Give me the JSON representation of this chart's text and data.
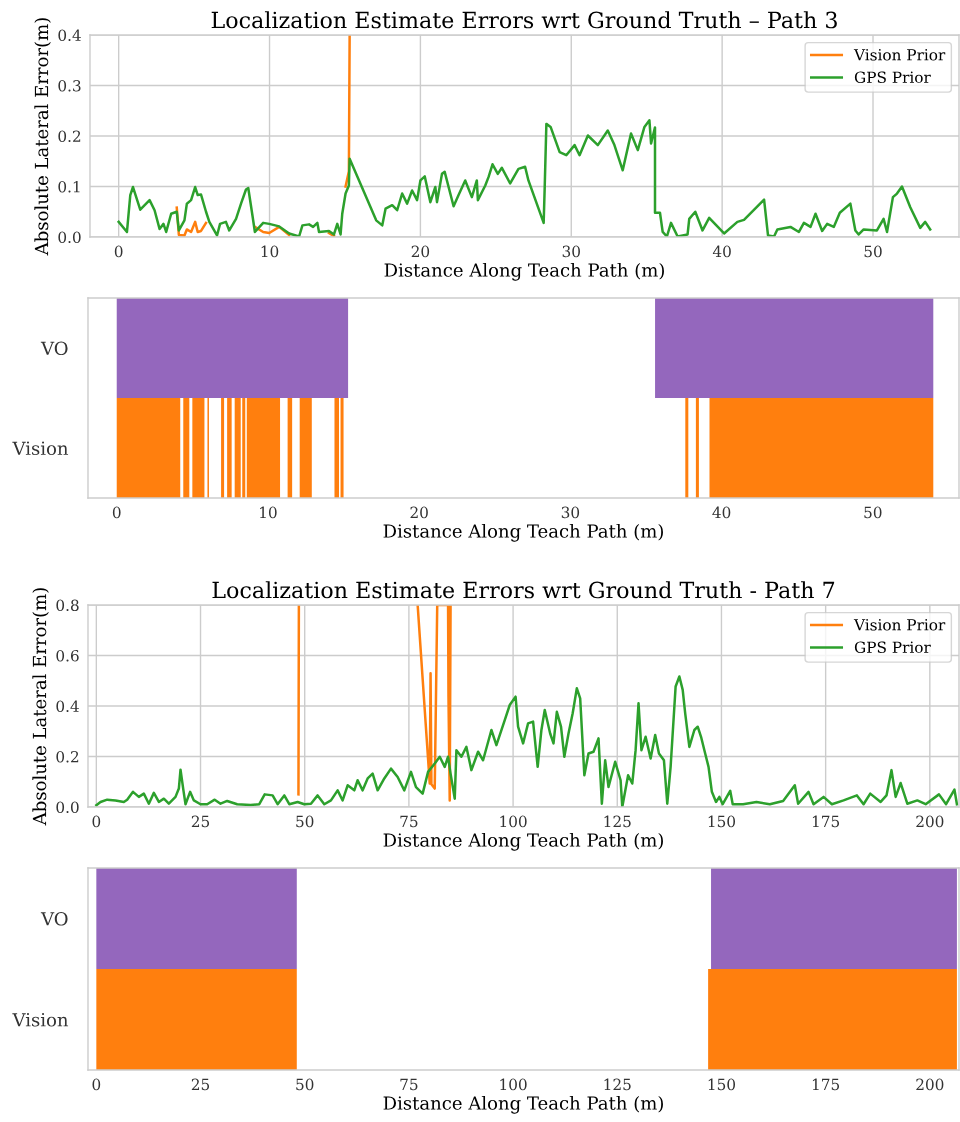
{
  "chart_data": [
    {
      "type": "line",
      "title": "Localization Estimate Errors wrt Ground Truth – Path 3",
      "xlabel": "Distance Along Teach Path (m)",
      "ylabel": "Absolute Lateral Error(m)",
      "xlim": [
        -1.9,
        55.7
      ],
      "xticks": [
        0,
        10,
        20,
        30,
        40,
        50
      ],
      "ylim": [
        0,
        0.4
      ],
      "yticks": [
        {
          "value": 0,
          "label": "0.0"
        },
        0.1,
        0.2,
        0.3,
        0.4
      ],
      "grid": true,
      "legend": "top right",
      "series": [
        {
          "name": "Vision Prior",
          "color": "#ff7f0e",
          "x": [
            3.85,
            3.99,
            4.36,
            4.52,
            4.8,
            5.07,
            5.24,
            5.46,
            5.79,
            null,
            9.03,
            9.58,
            9.98,
            10.64,
            11.3,
            null,
            13.94,
            14.27,
            null,
            15.04,
            15.26,
            15.31
          ],
          "values": [
            0.058,
            0.004,
            0.003,
            0.015,
            0.01,
            0.03,
            0.01,
            0.012,
            0.028,
            null,
            0.02,
            0.01,
            0.008,
            0.02,
            0.004,
            null,
            0.008,
            0.002,
            null,
            0.1,
            0.13,
            0.4
          ]
        },
        {
          "name": "GPS Prior",
          "color": "#2ca02c",
          "x": [
            0,
            0.55,
            0.77,
            0.95,
            1.43,
            2.05,
            2.38,
            2.71,
            2.97,
            3.15,
            3.48,
            3.85,
            3.99,
            4.36,
            4.52,
            4.8,
            5.07,
            5.24,
            5.46,
            5.79,
            6.01,
            6.52,
            6.72,
            7.11,
            7.33,
            7.78,
            8.11,
            8.44,
            8.59,
            8.88,
            9.03,
            9.58,
            9.98,
            10.64,
            11.3,
            11.96,
            12.18,
            12.62,
            12.89,
            13.17,
            13.28,
            13.94,
            14.27,
            14.49,
            14.71,
            14.82,
            15.04,
            15.26,
            15.31,
            17.07,
            17.47,
            17.69,
            18.13,
            18.46,
            18.79,
            19.12,
            19.45,
            19.78,
            20.0,
            20.29,
            20.66,
            20.99,
            21.1,
            21.43,
            21.61,
            22.2,
            22.53,
            22.97,
            23.41,
            23.74,
            23.81,
            24.3,
            24.52,
            24.78,
            25.13,
            25.4,
            25.95,
            26.5,
            26.94,
            27.16,
            28.17,
            28.24,
            28.35,
            28.63,
            29.23,
            29.67,
            30.22,
            30.55,
            31.1,
            31.76,
            32.42,
            32.86,
            33.41,
            33.96,
            34.41,
            34.85,
            35.18,
            35.29,
            35.55,
            35.55,
            35.88,
            36.06,
            36.34,
            36.61,
            37.05,
            37.71,
            37.82,
            38.22,
            38.7,
            39.14,
            40.13,
            41.01,
            41.45,
            42.78,
            43.04,
            43.44,
            43.66,
            44.53,
            45.09,
            45.42,
            45.86,
            46.19,
            46.63,
            46.96,
            47.4,
            47.8,
            48.5,
            48.83,
            49.05,
            49.38,
            50.26,
            50.7,
            50.93,
            51.32,
            51.59,
            51.92,
            52.47,
            53.13,
            53.46,
            53.79
          ],
          "values": [
            0.03,
            0.01,
            0.083,
            0.099,
            0.054,
            0.073,
            0.053,
            0.016,
            0.026,
            0.01,
            0.046,
            0.05,
            0.013,
            0.033,
            0.066,
            0.073,
            0.099,
            0.083,
            0.084,
            0.05,
            0.03,
            0.003,
            0.026,
            0.03,
            0.013,
            0.036,
            0.066,
            0.094,
            0.097,
            0.04,
            0.01,
            0.028,
            0.026,
            0.021,
            0.007,
            0.001,
            0.023,
            0.025,
            0.02,
            0.028,
            0.01,
            0.012,
            0.005,
            0.026,
            0.005,
            0.046,
            0.086,
            0.102,
            0.155,
            0.033,
            0.023,
            0.056,
            0.063,
            0.053,
            0.086,
            0.066,
            0.092,
            0.073,
            0.112,
            0.12,
            0.069,
            0.099,
            0.069,
            0.125,
            0.129,
            0.061,
            0.083,
            0.112,
            0.079,
            0.112,
            0.073,
            0.102,
            0.119,
            0.144,
            0.125,
            0.137,
            0.106,
            0.135,
            0.139,
            0.112,
            0.028,
            0.099,
            0.224,
            0.218,
            0.168,
            0.162,
            0.182,
            0.162,
            0.201,
            0.182,
            0.211,
            0.182,
            0.132,
            0.205,
            0.172,
            0.218,
            0.231,
            0.185,
            0.217,
            0.048,
            0.048,
            0.01,
            0.001,
            0.028,
            0.001,
            0.005,
            0.036,
            0.05,
            0.013,
            0.038,
            0.007,
            0.03,
            0.034,
            0.074,
            0.003,
            0.001,
            0.015,
            0.02,
            0.01,
            0.028,
            0.02,
            0.046,
            0.012,
            0.026,
            0.02,
            0.048,
            0.066,
            0.013,
            0.005,
            0.015,
            0.013,
            0.036,
            0.01,
            0.079,
            0.086,
            0.1,
            0.059,
            0.018,
            0.03,
            0.015
          ]
        }
      ]
    },
    {
      "type": "bar",
      "orientation": "horizontal",
      "categories": [
        "VO",
        "Vision"
      ],
      "xlabel": "Distance Along Teach Path (m)",
      "xlim": [
        -1.9,
        55.7
      ],
      "xticks": [
        0,
        10,
        20,
        30,
        40,
        50
      ],
      "grid": false,
      "series": [
        {
          "color": "#9467bd",
          "base": [
            0,
            null
          ],
          "values": [
            15.3,
            null
          ]
        },
        {
          "color": "#9467bd",
          "base": [
            35.6,
            null
          ],
          "values": [
            18.4,
            null
          ]
        },
        {
          "color": "#ff7f0e",
          "base": [
            null,
            0
          ],
          "values": [
            null,
            4.2
          ]
        },
        {
          "color": "#ff7f0e",
          "base": [
            null,
            4.4
          ],
          "values": [
            null,
            0.4
          ]
        },
        {
          "color": "#ff7f0e",
          "base": [
            null,
            5.0
          ],
          "values": [
            null,
            0.8
          ]
        },
        {
          "color": "#ff7f0e",
          "base": [
            null,
            6.0
          ],
          "values": [
            null,
            0.1
          ]
        },
        {
          "color": "#ff7f0e",
          "base": [
            null,
            6.9
          ],
          "values": [
            null,
            0.2
          ]
        },
        {
          "color": "#ff7f0e",
          "base": [
            null,
            7.3
          ],
          "values": [
            null,
            0.3
          ]
        },
        {
          "color": "#ff7f0e",
          "base": [
            null,
            7.8
          ],
          "values": [
            null,
            0.4
          ]
        },
        {
          "color": "#ff7f0e",
          "base": [
            null,
            8.3
          ],
          "values": [
            null,
            0.2
          ]
        },
        {
          "color": "#ff7f0e",
          "base": [
            null,
            8.6
          ],
          "values": [
            null,
            2.2
          ]
        },
        {
          "color": "#ff7f0e",
          "base": [
            null,
            11.3
          ],
          "values": [
            null,
            0.3
          ]
        },
        {
          "color": "#ff7f0e",
          "base": [
            null,
            12.1
          ],
          "values": [
            null,
            0.8
          ]
        },
        {
          "color": "#ff7f0e",
          "base": [
            null,
            14.4
          ],
          "values": [
            null,
            0.3
          ]
        },
        {
          "color": "#ff7f0e",
          "base": [
            null,
            14.8
          ],
          "values": [
            null,
            0.2
          ]
        },
        {
          "color": "#ff7f0e",
          "base": [
            null,
            37.6
          ],
          "values": [
            null,
            0.2
          ]
        },
        {
          "color": "#ff7f0e",
          "base": [
            null,
            38.3
          ],
          "values": [
            null,
            0.2
          ]
        },
        {
          "color": "#ff7f0e",
          "base": [
            null,
            39.2
          ],
          "values": [
            null,
            14.8
          ]
        }
      ]
    },
    {
      "type": "line",
      "title": "Localization Estimate Errors wrt Ground Truth - Path 7",
      "xlabel": "Distance Along Teach Path (m)",
      "ylabel": "Absolute Lateral Error(m)",
      "xlim": [
        -2,
        207
      ],
      "xticks": [
        0,
        25,
        50,
        75,
        100,
        125,
        150,
        175,
        200
      ],
      "ylim": [
        0,
        0.8
      ],
      "yticks": [
        {
          "value": 0,
          "label": "0.0"
        },
        0.2,
        0.4,
        0.6,
        0.8
      ],
      "grid": true,
      "legend": "top right",
      "series": [
        {
          "name": "Vision Prior",
          "color": "#ff7f0e",
          "x": [
            48.5,
            48.6,
            null,
            77.1,
            80.0,
            80.2,
            80.4,
            81.2,
            81.8,
            84.4,
            84.5,
            84.8,
            85.0
          ],
          "values": [
            0.05,
            0.8,
            null,
            0.8,
            0.093,
            0.53,
            0.09,
            0.073,
            0.8,
            0.8,
            0.437,
            0.026,
            0.8
          ]
        },
        {
          "name": "GPS Prior",
          "color": "#2ca02c",
          "x": [
            0,
            1.0,
            2.6,
            4.6,
            6.6,
            7.4,
            8.8,
            10.2,
            11.4,
            12.6,
            13.8,
            15.0,
            16.2,
            17.4,
            19.0,
            19.8,
            20.2,
            20.9,
            21.4,
            22.5,
            23.4,
            25.0,
            26.6,
            28.4,
            29.8,
            31.4,
            33.8,
            37.0,
            39.1,
            40.4,
            42.3,
            43.5,
            45.1,
            46.3,
            48.3,
            49.9,
            51.5,
            53.1,
            54.7,
            56.3,
            57.9,
            59.1,
            60.3,
            61.9,
            62.7,
            63.9,
            65.1,
            66.3,
            67.5,
            69.1,
            70.7,
            72.3,
            73.9,
            75.5,
            76.7,
            78.3,
            79.6,
            81.2,
            82.4,
            83.6,
            84.4,
            85.0,
            86.0,
            86.4,
            87.6,
            88.8,
            90.0,
            91.6,
            92.8,
            94.8,
            96.0,
            98.0,
            99.2,
            100.6,
            101.2,
            102.4,
            103.6,
            104.8,
            105.9,
            106.8,
            107.6,
            108.9,
            109.7,
            110.5,
            111.5,
            112.3,
            113.3,
            114.3,
            115.3,
            116.1,
            117.1,
            118.1,
            119.3,
            120.5,
            121.3,
            122.1,
            122.9,
            124.5,
            125.8,
            126.2,
            127.6,
            128.6,
            129.4,
            130.1,
            130.8,
            131.8,
            133.0,
            134.1,
            135.0,
            136.2,
            137.0,
            137.8,
            139.0,
            139.9,
            140.7,
            141.3,
            142.3,
            143.5,
            144.3,
            145.1,
            145.9,
            146.9,
            147.7,
            148.7,
            149.5,
            150.3,
            152.1,
            152.7,
            155.2,
            158.4,
            161.6,
            164.8,
            167.6,
            168.4,
            170.9,
            172.1,
            174.5,
            176.5,
            179.3,
            182.5,
            184.1,
            185.7,
            188.2,
            189.6,
            190.8,
            191.8,
            193.0,
            194.6,
            197.0,
            199.0,
            202.2,
            203.9,
            205.9,
            206.5
          ],
          "values": [
            0.007,
            0.02,
            0.029,
            0.026,
            0.02,
            0.029,
            0.06,
            0.04,
            0.053,
            0.013,
            0.056,
            0.02,
            0.033,
            0.013,
            0.04,
            0.073,
            0.148,
            0.066,
            0.011,
            0.06,
            0.026,
            0.011,
            0.011,
            0.029,
            0.013,
            0.024,
            0.011,
            0.008,
            0.011,
            0.05,
            0.046,
            0.011,
            0.046,
            0.011,
            0.02,
            0.011,
            0.013,
            0.046,
            0.011,
            0.026,
            0.066,
            0.026,
            0.086,
            0.066,
            0.106,
            0.066,
            0.113,
            0.132,
            0.066,
            0.113,
            0.152,
            0.119,
            0.066,
            0.139,
            0.079,
            0.053,
            0.139,
            0.172,
            0.199,
            0.159,
            0.199,
            0.132,
            0.033,
            0.225,
            0.199,
            0.238,
            0.146,
            0.219,
            0.185,
            0.305,
            0.245,
            0.344,
            0.404,
            0.437,
            0.318,
            0.252,
            0.331,
            0.338,
            0.159,
            0.305,
            0.384,
            0.291,
            0.252,
            0.377,
            0.318,
            0.199,
            0.291,
            0.371,
            0.47,
            0.43,
            0.126,
            0.212,
            0.219,
            0.272,
            0.013,
            0.185,
            0.079,
            0.179,
            0.106,
            0.0,
            0.126,
            0.093,
            0.225,
            0.411,
            0.225,
            0.278,
            0.192,
            0.285,
            0.212,
            0.185,
            0.013,
            0.159,
            0.477,
            0.517,
            0.464,
            0.371,
            0.238,
            0.305,
            0.318,
            0.278,
            0.225,
            0.159,
            0.06,
            0.02,
            0.04,
            0.011,
            0.064,
            0.011,
            0.011,
            0.02,
            0.011,
            0.024,
            0.086,
            0.013,
            0.06,
            0.011,
            0.04,
            0.011,
            0.026,
            0.046,
            0.011,
            0.053,
            0.02,
            0.046,
            0.146,
            0.04,
            0.095,
            0.013,
            0.026,
            0.011,
            0.05,
            0.011,
            0.069,
            0.011
          ]
        }
      ]
    },
    {
      "type": "bar",
      "orientation": "horizontal",
      "categories": [
        "VO",
        "Vision"
      ],
      "xlabel": "Distance Along Teach Path (m)",
      "xlim": [
        -2,
        207
      ],
      "xticks": [
        0,
        25,
        50,
        75,
        100,
        125,
        150,
        175,
        200
      ],
      "grid": false,
      "series": [
        {
          "color": "#9467bd",
          "base": [
            0,
            null
          ],
          "values": [
            48.1,
            null
          ]
        },
        {
          "color": "#9467bd",
          "base": [
            147.5,
            null
          ],
          "values": [
            59.0,
            null
          ]
        },
        {
          "color": "#ff7f0e",
          "base": [
            null,
            0
          ],
          "values": [
            null,
            48.1
          ]
        },
        {
          "color": "#ff7f0e",
          "base": [
            null,
            146.8
          ],
          "values": [
            null,
            59.7
          ]
        }
      ]
    }
  ]
}
